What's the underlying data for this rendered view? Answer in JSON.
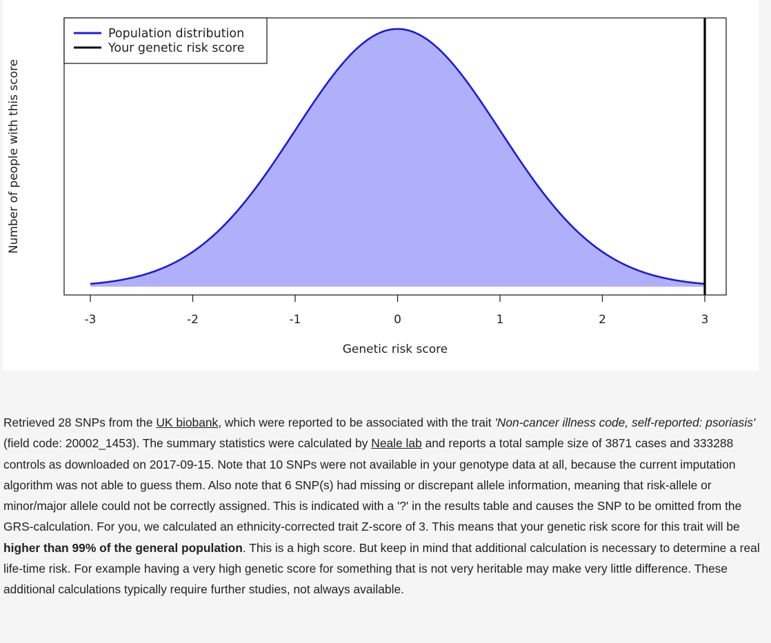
{
  "chart_data": {
    "type": "area",
    "xlabel": "Genetic risk score",
    "ylabel": "Number of people with this score",
    "xlim": [
      -3,
      3
    ],
    "xticks": [
      -3,
      -2,
      -1,
      0,
      1,
      2,
      3
    ],
    "grid": false,
    "legend_placement": "top-left",
    "series": [
      {
        "name": "Population distribution",
        "kind": "normal-density",
        "mean": 0,
        "sd": 1,
        "x": [
          -3,
          -2.5,
          -2,
          -1.5,
          -1,
          -0.5,
          0,
          0.5,
          1,
          1.5,
          2,
          2.5,
          3
        ],
        "y": [
          0.0044,
          0.0175,
          0.054,
          0.1295,
          0.242,
          0.352,
          0.399,
          0.352,
          0.242,
          0.1295,
          0.054,
          0.0175,
          0.0044
        ],
        "line_color": "#1a1adb",
        "fill_color": "#b0b0fa"
      },
      {
        "name": "Your genetic risk score",
        "kind": "vertical-line",
        "x": 3,
        "line_color": "#000000"
      }
    ]
  },
  "description": {
    "p1": "Retrieved 28 SNPs from the ",
    "link_uk_biobank": "UK biobank",
    "p2": ", which were reported to be associated with the trait ",
    "trait": "'Non-cancer illness code, self-reported: psoriasis'",
    "p3": " (field code: 20002_1453). The summary statistics were calculated by ",
    "link_neale_lab": "Neale lab",
    "p4": " and reports a total sample size of 3871 cases and 333288 controls as downloaded on 2017-09-15. Note that 10 SNPs were not available in your genotype data at all, because the current imputation algorithm was not able to guess them. Also note that 6 SNP(s) had missing or discrepant allele information, meaning that risk-allele or minor/major allele could not be correctly assigned. This is indicated with a '?' in the results table and causes the SNP to be omitted from the GRS-calculation. For you, we calculated an ethnicity-corrected trait Z-score of 3. This means that your genetic risk score for this trait will be ",
    "highlight": "higher than 99% of the general population",
    "p5": ". This is a high score. But keep in mind that additional calculation is necessary to determine a real life-time risk. For example having a very high genetic score for something that is not very heritable may make very little difference. These additional calculations typically require further studies, not always available."
  }
}
